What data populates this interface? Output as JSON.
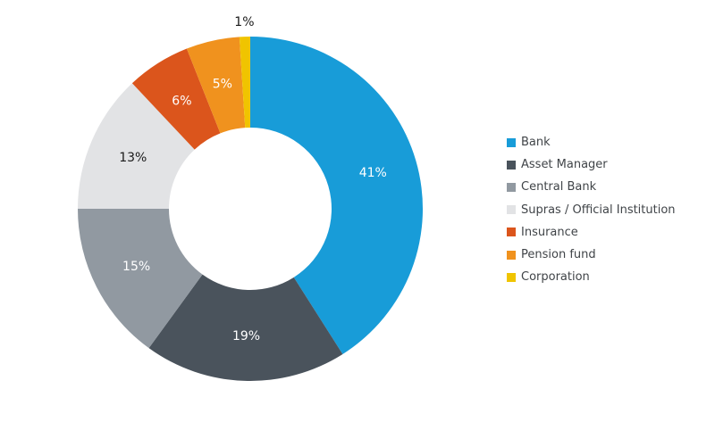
{
  "chart_data": {
    "type": "pie",
    "subtype": "donut",
    "title": "",
    "categories": [
      "Bank",
      "Asset Manager",
      "Central Bank",
      "Supras / Official Institution",
      "Insurance",
      "Pension fund",
      "Corporation"
    ],
    "values": [
      41,
      19,
      15,
      13,
      6,
      5,
      1
    ],
    "unit": "%",
    "labels": [
      "41%",
      "19%",
      "15%",
      "13%",
      "6%",
      "5%",
      "1%"
    ],
    "colors": [
      "#189CD8",
      "#4A535C",
      "#9199A1",
      "#E2E3E5",
      "#DB551C",
      "#F0921E",
      "#F0C400"
    ],
    "label_colors": [
      "#ffffff",
      "#ffffff",
      "#ffffff",
      "#1a1a1a",
      "#ffffff",
      "#ffffff",
      "#1a1a1a"
    ],
    "label_placement": [
      "inside",
      "inside",
      "inside",
      "inside",
      "inside",
      "inside",
      "outside"
    ],
    "start_angle_deg": 0,
    "direction": "clockwise",
    "legend_position": "right",
    "grid": false,
    "background": "#ffffff"
  }
}
